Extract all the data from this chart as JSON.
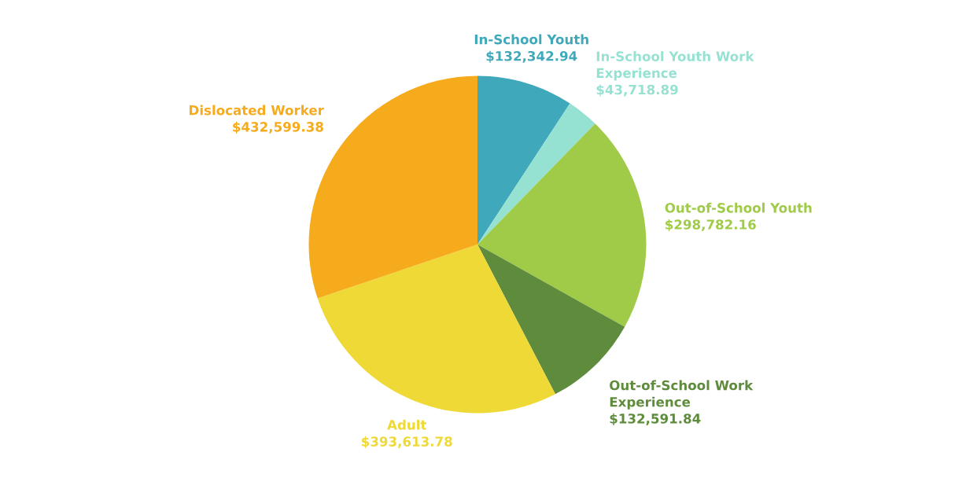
{
  "chart_data": {
    "type": "pie",
    "categories": [
      "In-School Youth",
      "In-School Youth Work\nExperience",
      "Out-of-School Youth",
      "Out-of-School Work\nExperience",
      "Adult",
      "Dislocated Worker"
    ],
    "values": [
      132342.94,
      43718.89,
      298782.16,
      132591.84,
      393613.78,
      432599.38
    ],
    "value_labels": [
      "$132,342.94",
      "$43,718.89",
      "$298,782.16",
      "$132,591.84",
      "$393,613.78",
      "$432,599.38"
    ],
    "colors": [
      "#3fa9bb",
      "#96e2d2",
      "#a0cb48",
      "#5e8c3c",
      "#eed936",
      "#f6ab1c"
    ],
    "legend": false
  }
}
